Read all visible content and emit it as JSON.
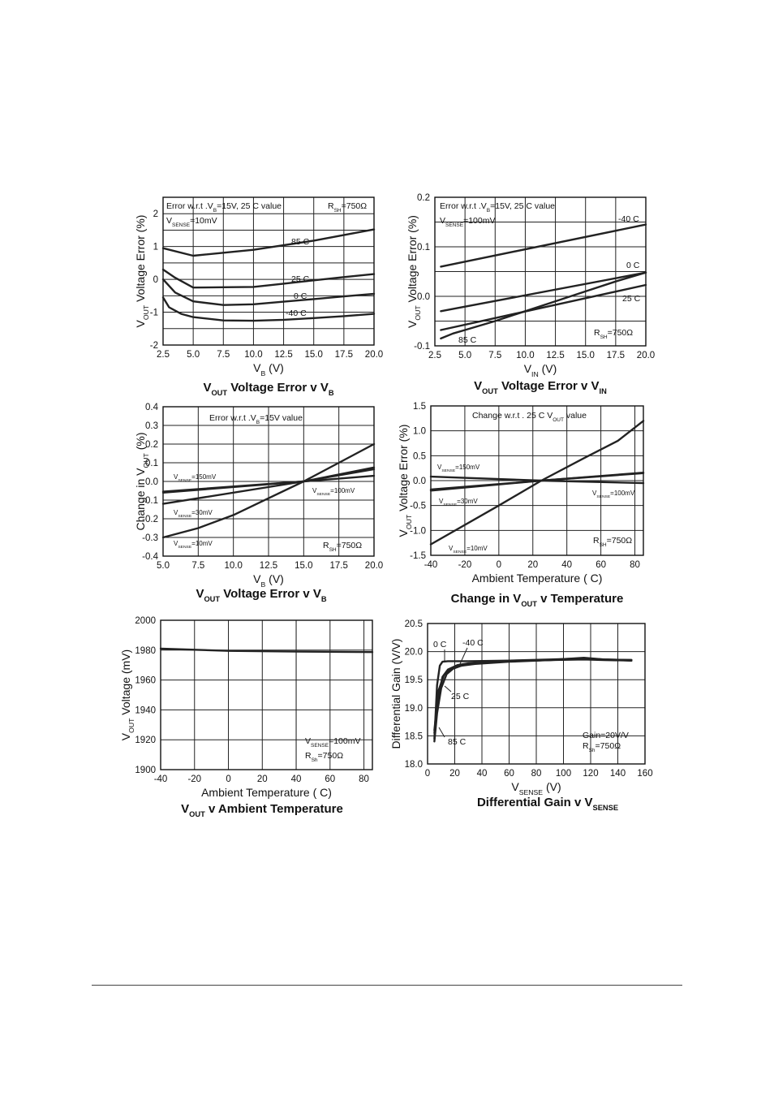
{
  "charts": [
    {
      "id": "c1",
      "type": "line",
      "xlim": [
        2.5,
        20.0
      ],
      "ylim": [
        -2,
        2.5
      ],
      "x_ticks": [
        "2.5",
        "5.0",
        "7.5",
        "10.0",
        "12.5",
        "15.0",
        "17.5",
        "20.0"
      ],
      "y_ticks": [
        "-2",
        "-1",
        "0",
        "1",
        "2"
      ],
      "y_tick_values": [
        -2,
        -1,
        0,
        1,
        2
      ],
      "grid": true,
      "xlabel": {
        "main": "V",
        "sub": "B",
        "unit": " (V)"
      },
      "ylabel": {
        "main": "V",
        "sub": "OUT",
        "rest": " Voltage Error (%)"
      },
      "title": {
        "a": "V",
        "sub": "OUT",
        "b": " Voltage Error v V",
        "sub2": "B"
      },
      "annotations": [
        {
          "text": "Error w.r.t .V",
          "sub": "B",
          "rest": "=15V, 25 C value"
        },
        {
          "text": "R",
          "sub": "SH",
          "rest": "=750Ω"
        },
        {
          "text": "V",
          "sub": "SENSE",
          "rest": "=10mV"
        }
      ],
      "series": [
        {
          "name": "85 C",
          "x": [
            2.5,
            5.0,
            10.0,
            15.0,
            20.0
          ],
          "y": [
            0.95,
            0.72,
            0.9,
            1.18,
            1.52
          ]
        },
        {
          "name": "25 C",
          "x": [
            2.5,
            3.5,
            5.0,
            7.5,
            10.0,
            12.5,
            15.0,
            17.5,
            20.0
          ],
          "y": [
            0.3,
            0.05,
            -0.25,
            -0.24,
            -0.23,
            -0.13,
            -0.03,
            0.07,
            0.16
          ]
        },
        {
          "name": "0 C",
          "x": [
            2.5,
            3.5,
            5.0,
            7.5,
            10.0,
            12.5,
            15.0,
            17.5,
            20.0
          ],
          "y": [
            0.0,
            -0.4,
            -0.67,
            -0.78,
            -0.76,
            -0.68,
            -0.6,
            -0.52,
            -0.44
          ]
        },
        {
          "name": "-40 C",
          "x": [
            2.5,
            3.0,
            4.0,
            5.0,
            7.5,
            10.0,
            12.5,
            15.0,
            17.5,
            20.0
          ],
          "y": [
            -0.55,
            -0.85,
            -1.05,
            -1.15,
            -1.25,
            -1.26,
            -1.23,
            -1.18,
            -1.12,
            -1.05
          ]
        }
      ]
    },
    {
      "id": "c2",
      "type": "line",
      "xlim": [
        2.5,
        20.0
      ],
      "ylim": [
        -0.1,
        0.2
      ],
      "x_ticks": [
        "2.5",
        "5.0",
        "7.5",
        "10.0",
        "12.5",
        "15.0",
        "17.5",
        "20.0"
      ],
      "y_ticks": [
        "-0.1",
        "0.0",
        "0.1",
        "0.2"
      ],
      "y_tick_values": [
        -0.1,
        0.0,
        0.1,
        0.2
      ],
      "grid": true,
      "xlabel": {
        "main": "V",
        "sub": "IN",
        "unit": " (V)"
      },
      "ylabel": {
        "main": "V",
        "sub": "OUT",
        "rest": " Voltage Error (%)"
      },
      "title": {
        "a": "V",
        "sub": "OUT",
        "b": " Voltage Error v V",
        "sub2": "IN"
      },
      "annotations": [
        {
          "text": "Error w.r.t .V",
          "sub": "B",
          "rest": "=15V, 25 C value"
        },
        {
          "text": "V",
          "sub": "SENSE",
          "rest": "=100mV"
        },
        {
          "text": "R",
          "sub": "SH",
          "rest": "=750Ω"
        }
      ],
      "series": [
        {
          "name": "-40 C",
          "x": [
            3.0,
            20.0
          ],
          "y": [
            0.06,
            0.145
          ]
        },
        {
          "name": "0 C",
          "x": [
            3.0,
            20.0
          ],
          "y": [
            -0.03,
            0.048
          ]
        },
        {
          "name": "25 C",
          "x": [
            3.0,
            20.0
          ],
          "y": [
            -0.068,
            0.023
          ]
        },
        {
          "name": "85 C",
          "x": [
            3.0,
            4.0,
            5.0,
            7.5,
            10.0,
            12.5,
            15.0,
            17.5,
            20.0
          ],
          "y": [
            -0.085,
            -0.075,
            -0.068,
            -0.05,
            -0.03,
            -0.01,
            0.01,
            0.03,
            0.048
          ]
        }
      ]
    },
    {
      "id": "c3",
      "type": "line",
      "xlim": [
        5.0,
        20.0
      ],
      "ylim": [
        -0.4,
        0.4
      ],
      "x_ticks": [
        "5.0",
        "7.5",
        "10.0",
        "12.5",
        "15.0",
        "17.5",
        "20.0"
      ],
      "y_ticks": [
        "-0.4",
        "-0.3",
        "-0.2",
        "-0.1",
        "0.0",
        "0.1",
        "0.2",
        "0.3",
        "0.4"
      ],
      "y_tick_values": [
        -0.4,
        -0.3,
        -0.2,
        -0.1,
        0.0,
        0.1,
        0.2,
        0.3,
        0.4
      ],
      "grid": true,
      "xlabel": {
        "main": "V",
        "sub": "B",
        "unit": " (V)"
      },
      "ylabel": {
        "main": "Change in V",
        "sub": "OUT",
        "rest": " (%)"
      },
      "title": {
        "a": "V",
        "sub": "OUT",
        "b": " Voltage Error v V",
        "sub2": "B"
      },
      "annotations": [
        {
          "text": "Error w.r.t .V",
          "sub": "B",
          "rest": "=15V value"
        },
        {
          "text": "R",
          "sub": "SH",
          "rest": "=750Ω"
        }
      ],
      "series": [
        {
          "name": "V_SENSE=150mV",
          "label_main": "V",
          "label_sub": "SENSE",
          "label_rest": "=150mV",
          "x": [
            5.0,
            15.0,
            20.0
          ],
          "y": [
            -0.055,
            0.0,
            0.03
          ]
        },
        {
          "name": "V_SENSE=100mV",
          "label_main": "V",
          "label_sub": "SENSE",
          "label_rest": "=100mV",
          "x": [
            5.0,
            15.0,
            20.0
          ],
          "y": [
            -0.06,
            0.0,
            0.075
          ]
        },
        {
          "name": "V_SENSE=30mV",
          "label_main": "V",
          "label_sub": "SENSE",
          "label_rest": "=30mV",
          "x": [
            5.0,
            15.0,
            20.0
          ],
          "y": [
            -0.12,
            0.0,
            0.065
          ]
        },
        {
          "name": "V_SENSE=10mV",
          "label_main": "V",
          "label_sub": "SENSE",
          "label_rest": "=10mV",
          "x": [
            5.0,
            7.5,
            10.0,
            12.5,
            15.0,
            17.5,
            20.0
          ],
          "y": [
            -0.3,
            -0.25,
            -0.18,
            -0.09,
            0.0,
            0.1,
            0.2
          ]
        }
      ]
    },
    {
      "id": "c4",
      "type": "line",
      "xlim": [
        -40,
        85
      ],
      "ylim": [
        -1.5,
        1.5
      ],
      "x_ticks": [
        "-40",
        "-20",
        "0",
        "20",
        "40",
        "60",
        "80"
      ],
      "x_tick_values": [
        -40,
        -20,
        0,
        20,
        40,
        60,
        80
      ],
      "y_ticks": [
        "-1.5",
        "-1.0",
        "-0.5",
        "0.0",
        "0.5",
        "1.0",
        "1.5"
      ],
      "y_tick_values": [
        -1.5,
        -1.0,
        -0.5,
        0.0,
        0.5,
        1.0,
        1.5
      ],
      "grid": true,
      "xlabel": {
        "main": "Ambient Temperature ( C)",
        "sub": "",
        "unit": ""
      },
      "ylabel": {
        "main": "V",
        "sub": "OUT",
        "rest": " Voltage Error (%)"
      },
      "title": {
        "a": "Change in V",
        "sub": "OUT",
        "b": " v Temperature",
        "sub2": ""
      },
      "annotations": [
        {
          "text": "Change w.r.t . 25 C V",
          "sub": "OUT",
          "rest": " value"
        },
        {
          "text": "R",
          "sub": "SH",
          "rest": "=750Ω"
        }
      ],
      "series": [
        {
          "name": "V_SENSE=150mV",
          "label_main": "V",
          "label_sub": "SENSE",
          "label_rest": "=150mV",
          "x": [
            -40,
            25,
            85
          ],
          "y": [
            0.08,
            0.0,
            -0.05
          ]
        },
        {
          "name": "V_SENSE=100mV",
          "label_main": "V",
          "label_sub": "SENSE",
          "label_rest": "=100mV",
          "x": [
            -40,
            25,
            85
          ],
          "y": [
            -0.2,
            0.0,
            0.16
          ]
        },
        {
          "name": "V_SENSE=30mV",
          "label_main": "V",
          "label_sub": "SENSE",
          "label_rest": "=30mV",
          "x": [
            -40,
            25,
            85
          ],
          "y": [
            -0.18,
            0.0,
            0.15
          ]
        },
        {
          "name": "V_SENSE=10mV",
          "label_main": "V",
          "label_sub": "SENSE",
          "label_rest": "=10mV",
          "x": [
            -40,
            0,
            25,
            50,
            70,
            85
          ],
          "y": [
            -1.28,
            -0.5,
            0.0,
            0.45,
            0.8,
            1.2
          ]
        }
      ]
    },
    {
      "id": "c5",
      "type": "line",
      "xlim": [
        -40,
        85
      ],
      "ylim": [
        1900,
        2000
      ],
      "x_ticks": [
        "-40",
        "-20",
        "0",
        "20",
        "40",
        "60",
        "80"
      ],
      "x_tick_values": [
        -40,
        -20,
        0,
        20,
        40,
        60,
        80
      ],
      "y_ticks": [
        "1900",
        "1920",
        "1940",
        "1960",
        "1980",
        "2000"
      ],
      "y_tick_values": [
        1900,
        1920,
        1940,
        1960,
        1980,
        2000
      ],
      "grid": true,
      "xlabel": {
        "main": "Ambient Temperature ( C)",
        "sub": "",
        "unit": ""
      },
      "ylabel": {
        "main": "V",
        "sub": "OUT",
        "rest": " Voltage (mV)"
      },
      "title": {
        "a": "V",
        "sub": "OUT",
        "b": " v Ambient Temperature",
        "sub2": ""
      },
      "annotations": [
        {
          "text": "V",
          "sub": "SENSE",
          "rest": "=100mV"
        },
        {
          "text": "R",
          "sub": "Sh",
          "rest": "=750Ω"
        }
      ],
      "series": [
        {
          "name": "",
          "x": [
            -40,
            0,
            40,
            85
          ],
          "y": [
            1981,
            1979.5,
            1979,
            1978.7
          ]
        }
      ]
    },
    {
      "id": "c6",
      "type": "line",
      "xlim": [
        0,
        160
      ],
      "ylim": [
        18.0,
        20.5
      ],
      "x_ticks": [
        "0",
        "20",
        "40",
        "60",
        "80",
        "100",
        "120",
        "140",
        "160"
      ],
      "x_tick_values": [
        0,
        20,
        40,
        60,
        80,
        100,
        120,
        140,
        160
      ],
      "y_ticks": [
        "18.0",
        "18.5",
        "19.0",
        "19.5",
        "20.0",
        "20.5"
      ],
      "y_tick_values": [
        18.0,
        18.5,
        19.0,
        19.5,
        20.0,
        20.5
      ],
      "grid": true,
      "xlabel": {
        "main": "V",
        "sub": "SENSE",
        "unit": " (V)"
      },
      "ylabel": {
        "main": "Differential Gain (V/V)",
        "sub": "",
        "rest": ""
      },
      "title": {
        "a": "Differential Gain v V",
        "sub": "SENSE",
        "b": "",
        "sub2": ""
      },
      "annotations": [
        {
          "text": "Gain=20V/V",
          "sub": "",
          "rest": ""
        },
        {
          "text": "R",
          "sub": "Sh",
          "rest": "=750Ω"
        }
      ],
      "series": [
        {
          "name": "0 C",
          "x": [
            5,
            7,
            9,
            11,
            15,
            30,
            60,
            90,
            115,
            130,
            150
          ],
          "y": [
            18.45,
            19.4,
            19.75,
            19.82,
            19.83,
            19.83,
            19.84,
            19.86,
            19.88,
            19.86,
            19.85
          ]
        },
        {
          "name": "-40 C",
          "x": [
            5,
            8,
            11,
            15,
            22,
            30,
            60,
            90,
            115,
            130,
            150
          ],
          "y": [
            18.55,
            19.2,
            19.55,
            19.68,
            19.76,
            19.79,
            19.83,
            19.85,
            19.89,
            19.86,
            19.84
          ]
        },
        {
          "name": "25 C",
          "x": [
            5,
            8,
            12,
            17,
            25,
            35,
            60,
            90,
            115,
            130,
            150
          ],
          "y": [
            18.6,
            19.3,
            19.58,
            19.68,
            19.75,
            19.78,
            19.82,
            19.85,
            19.87,
            19.86,
            19.85
          ]
        },
        {
          "name": "85 C",
          "x": [
            5,
            7,
            10,
            14,
            20,
            30,
            60,
            90,
            115,
            130,
            150
          ],
          "y": [
            18.4,
            18.9,
            19.35,
            19.6,
            19.72,
            19.78,
            19.83,
            19.85,
            19.86,
            19.85,
            19.84
          ]
        }
      ]
    }
  ]
}
